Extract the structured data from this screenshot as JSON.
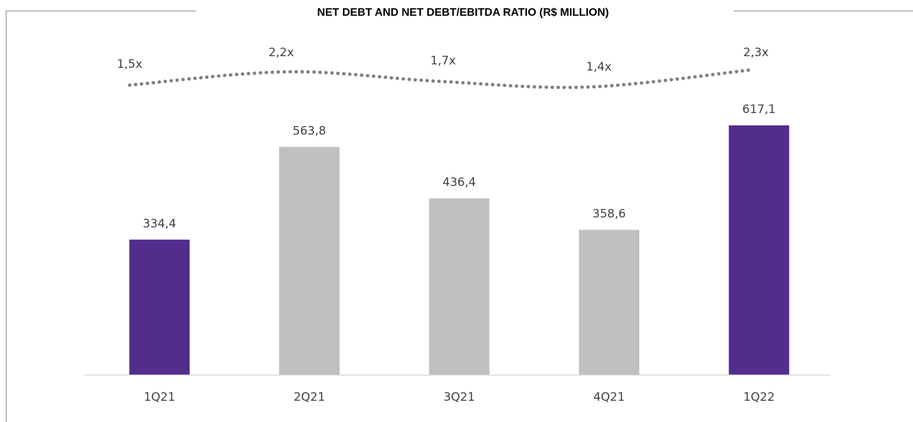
{
  "chart_data": {
    "type": "bar",
    "title": "NET DEBT AND NET DEBT/EBITDA RATIO (R$ MILLION)",
    "categories": [
      "1Q21",
      "2Q21",
      "3Q21",
      "4Q21",
      "1Q22"
    ],
    "series": [
      {
        "values": [
          334.4,
          563.8,
          436.4,
          358.6,
          617.1
        ],
        "labels": [
          "334,4",
          "563,8",
          "436,4",
          "358,6",
          "617,1"
        ],
        "colors": [
          "#522d8c",
          "#c0c0c0",
          "#c0c0c0",
          "#c0c0c0",
          "#522d8c"
        ]
      },
      {
        "type": "line",
        "style": "dotted",
        "color": "#7f7f7f",
        "values": [
          1.5,
          2.2,
          1.7,
          1.4,
          2.3
        ],
        "labels": [
          "1,5x",
          "2,2x",
          "1,7x",
          "1,4x",
          "2,3x"
        ]
      }
    ],
    "ylim": [
      0,
      617.1
    ],
    "grid": false,
    "legend": "none"
  }
}
